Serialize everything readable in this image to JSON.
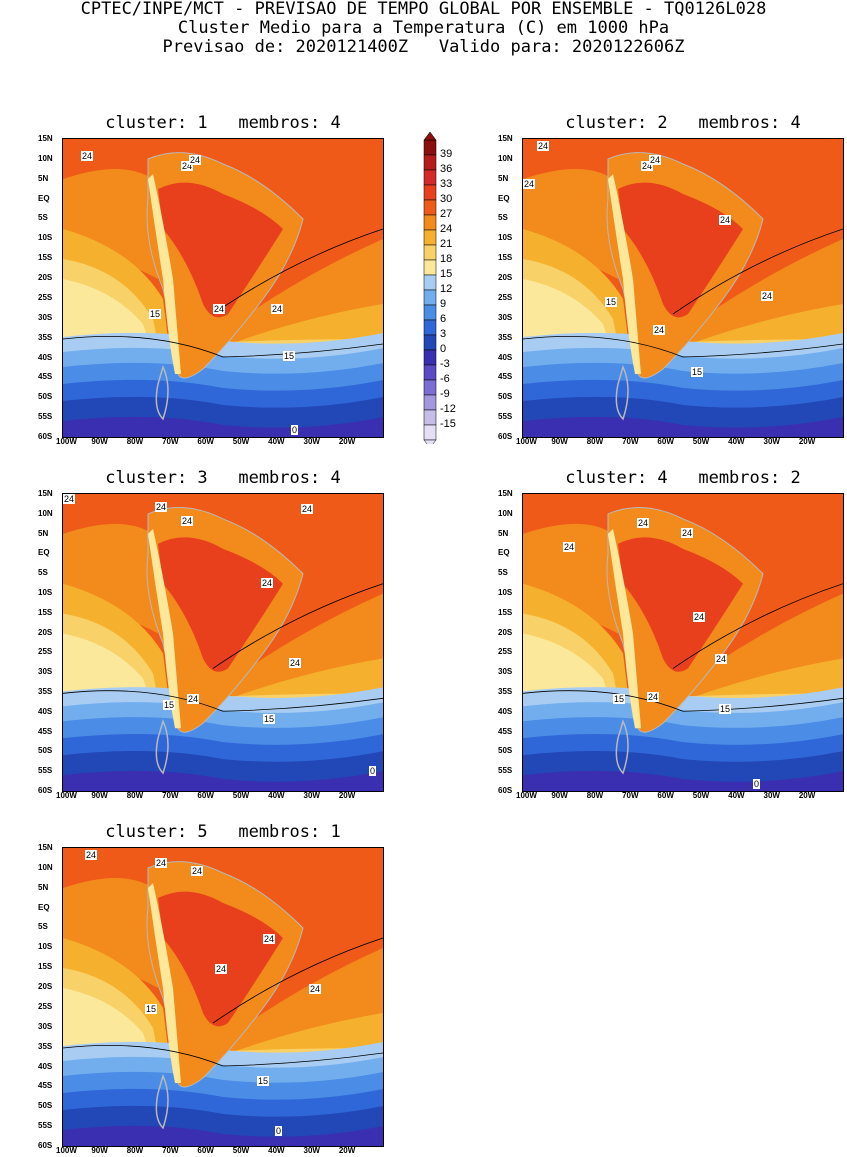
{
  "header": {
    "line1": "CPTEC/INPE/MCT - PREVISAO DE TEMPO GLOBAL POR ENSEMBLE - TQ0126L028",
    "line2": "Cluster Medio para a Temperatura (C) em 1000 hPa",
    "line3": "Previsao de: 2020121400Z   Valido para: 2020122606Z"
  },
  "panels": [
    {
      "title": "cluster: 1   membros: 4",
      "labels": [
        "24",
        "24",
        "24",
        "24",
        "24",
        "15",
        "15",
        "0"
      ]
    },
    {
      "title": "cluster: 2   membros: 4",
      "labels": [
        "24",
        "24",
        "24",
        "24",
        "24",
        "24",
        "15",
        "15",
        "24"
      ]
    },
    {
      "title": "cluster: 3   membros: 4",
      "labels": [
        "24",
        "24",
        "24",
        "24",
        "24",
        "24",
        "15",
        "15",
        "24",
        "0"
      ]
    },
    {
      "title": "cluster: 4   membros: 2",
      "labels": [
        "24",
        "24",
        "24",
        "24",
        "24",
        "24",
        "15",
        "15",
        "0"
      ]
    },
    {
      "title": "cluster: 5   membros: 1",
      "labels": [
        "24",
        "24",
        "24",
        "24",
        "24",
        "24",
        "15",
        "15",
        "0"
      ]
    }
  ],
  "axes": {
    "lat_ticks": [
      "15N",
      "10N",
      "5N",
      "EQ",
      "5S",
      "10S",
      "15S",
      "20S",
      "25S",
      "30S",
      "35S",
      "40S",
      "45S",
      "50S",
      "55S",
      "60S"
    ],
    "lon_ticks": [
      "100W",
      "90W",
      "80W",
      "70W",
      "60W",
      "50W",
      "40W",
      "30W",
      "20W"
    ]
  },
  "colorbar": {
    "labels": [
      "39",
      "36",
      "33",
      "30",
      "27",
      "24",
      "21",
      "18",
      "15",
      "12",
      "9",
      "6",
      "3",
      "0",
      "-3",
      "-6",
      "-9",
      "-12",
      "-15"
    ],
    "colors": [
      "#8b0f0f",
      "#b51c1c",
      "#d42a2a",
      "#e8401c",
      "#f05a18",
      "#f28a1c",
      "#f5b12e",
      "#f8d168",
      "#fbe89a",
      "#a9cdf2",
      "#72aeee",
      "#4a8ce6",
      "#3067d8",
      "#2247b6",
      "#3a2fb0",
      "#5a4bc4",
      "#7c6ed2",
      "#a397de",
      "#c6bde8",
      "#e4dff4"
    ]
  }
}
